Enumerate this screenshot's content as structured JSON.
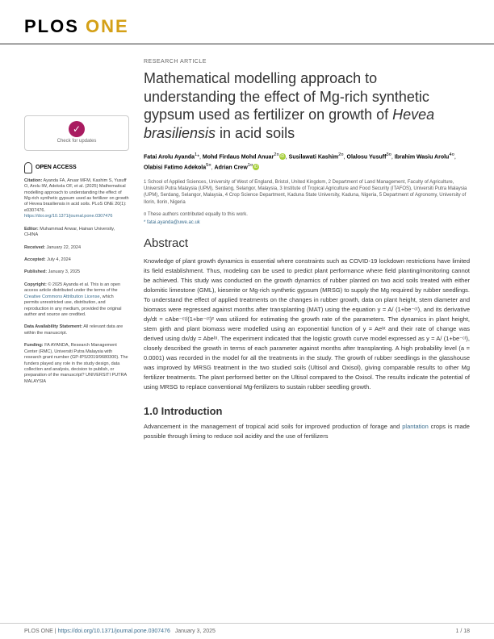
{
  "journal": {
    "name": "PLOS",
    "variant": "ONE",
    "variant_color": "#d4a017"
  },
  "article_type": "RESEARCH ARTICLE",
  "title_html": "Mathematical modelling approach to understanding the effect of Mg-rich synthetic gypsum used as fertilizer on growth of <em>Hevea brasiliensis</em> in acid soils",
  "authors": [
    {
      "name": "Fatai Arolu Ayanda",
      "sup": "1",
      "mark": "*",
      "orcid": false
    },
    {
      "name": "Mohd Firdaus Mohd Anuar",
      "sup": "2¤",
      "orcid": true
    },
    {
      "name": "Susilawati Kashim",
      "sup": "2¤",
      "orcid": false
    },
    {
      "name": "Olalosu Yusuff",
      "sup": "3¤",
      "orcid": false
    },
    {
      "name": "Ibrahim Wasiu Arolu",
      "sup": "4¤",
      "orcid": false
    },
    {
      "name": "Olabisi Fatimo Adekola",
      "sup": "5¤",
      "orcid": false
    },
    {
      "name": "Adrian Crew",
      "sup": "1¤",
      "orcid": true
    }
  ],
  "affiliations": "1 School of Applied Sciences, University of West of England, Bristol, United Kingdom, 2 Department of Land Management, Faculty of Agriculture, Universiti Putra Malaysia (UPM), Serdang, Selangor, Malaysia, 3 Institute of Tropical Agriculture and Food Security (ITAFOS), Universiti Putra Malaysia (UPM), Serdang, Selangor, Malaysia, 4 Crop Science Department, Kaduna State University, Kaduna, Nigeria, 5 Department of Agronomy, University of Ilorin, Ilorin, Nigeria",
  "equal_note": "¤ These authors contributed equally to this work.",
  "corr_email": "* fatai.ayanda@uwe.ac.uk",
  "check_updates": "Check for updates",
  "open_access_label": "OPEN ACCESS",
  "sidebar": {
    "citation": {
      "label": "Citation:",
      "text": "Ayanda FA, Anuar MFM, Kashim S, Yusuff O, Arolu IW, Adekola OF, et al. (2025) Mathematical modelling approach to understanding the effect of Mg-rich synthetic gypsum used as fertilizer on growth of Hevea brasiliensis in acid soils. PLoS ONE 20(1): e0307476.",
      "link": "https://doi.org/10.1371/journal.pone.0307476"
    },
    "editor": {
      "label": "Editor:",
      "text": "Muhammad Anwar, Hainan University, CHINA"
    },
    "received": {
      "label": "Received:",
      "text": "January 22, 2024"
    },
    "accepted": {
      "label": "Accepted:",
      "text": "July 4, 2024"
    },
    "published": {
      "label": "Published:",
      "text": "January 3, 2025"
    },
    "copyright": {
      "label": "Copyright:",
      "text": "© 2025 Ayanda et al. This is an open access article distributed under the terms of the",
      "link_text": "Creative Commons Attribution License",
      "text2": ", which permits unrestricted use, distribution, and reproduction in any medium, provided the original author and source are credited."
    },
    "data_avail": {
      "label": "Data Availability Statement:",
      "text": "All relevant data are within the manuscript."
    },
    "funding": {
      "label": "Funding:",
      "text": "FA AYANDA, Research Management Center (RMC), Universiti Putra Malaysia with research grant number (GP-IPS/2019/9680300). The funders played any role in the study design, data collection and analysis, decision to publish, or preparation of the manuscript? UNIVERSITI PUTRA MALAYSIA"
    }
  },
  "abstract": {
    "heading": "Abstract",
    "text": "Knowledge of plant growth dynamics is essential where constraints such as COVID-19 lockdown restrictions have limited its field establishment. Thus, modeling can be used to predict plant performance where field planting/monitoring cannot be achieved. This study was conducted on the growth dynamics of rubber planted on two acid soils treated with either dolomitic limestone (GML), kieserite or Mg-rich synthetic gypsum (MRSG) to supply the Mg required by rubber seedlings. To understand the effect of applied treatments on the changes in rubber growth, data on plant height, stem diameter and biomass were regressed against months after transplanting (MAT) using the equation y = A/ (1+be⁻ᶜᵗ), and its derivative dy/dt = cAbe⁻ᶜᵗ/(1+be⁻ᶜᵗ)² was utilized for estimating the growth rate of the parameters. The dynamics in plant height, stem girth and plant biomass were modelled using an exponential function of y = Aeᵇᵗ and their rate of change was derived using dx/dy = Abeᵇᵗ. The experiment indicated that the logistic growth curve model expressed as y = A/ (1+be⁻ᶜᵗ), closely described the growth in terms of each parameter against months after transplanting. A high probability level (a = 0.0001) was recorded in the model for all the treatments in the study. The growth of rubber seedlings in the glasshouse was improved by MRSG treatment in the two studied soils (Ultisol and Oxisol), giving comparable results to other Mg fertilizer treatments. The plant performed better on the Ultisol compared to the Oxisol. The results indicate the potential of using MRSG to replace conventional Mg-fertilizers to sustain rubber seedling growth."
  },
  "intro": {
    "heading": "1.0 Introduction",
    "text_pre": "Advancement in the management of tropical acid soils for improved production of forage and ",
    "link": "plantation",
    "text_post": " crops is made possible through liming to reduce soil acidity and the use of fertilizers"
  },
  "footer": {
    "journal": "PLOS ONE |",
    "doi": "https://doi.org/10.1371/journal.pone.0307476",
    "date": "January 3, 2025",
    "page": "1 / 18"
  }
}
